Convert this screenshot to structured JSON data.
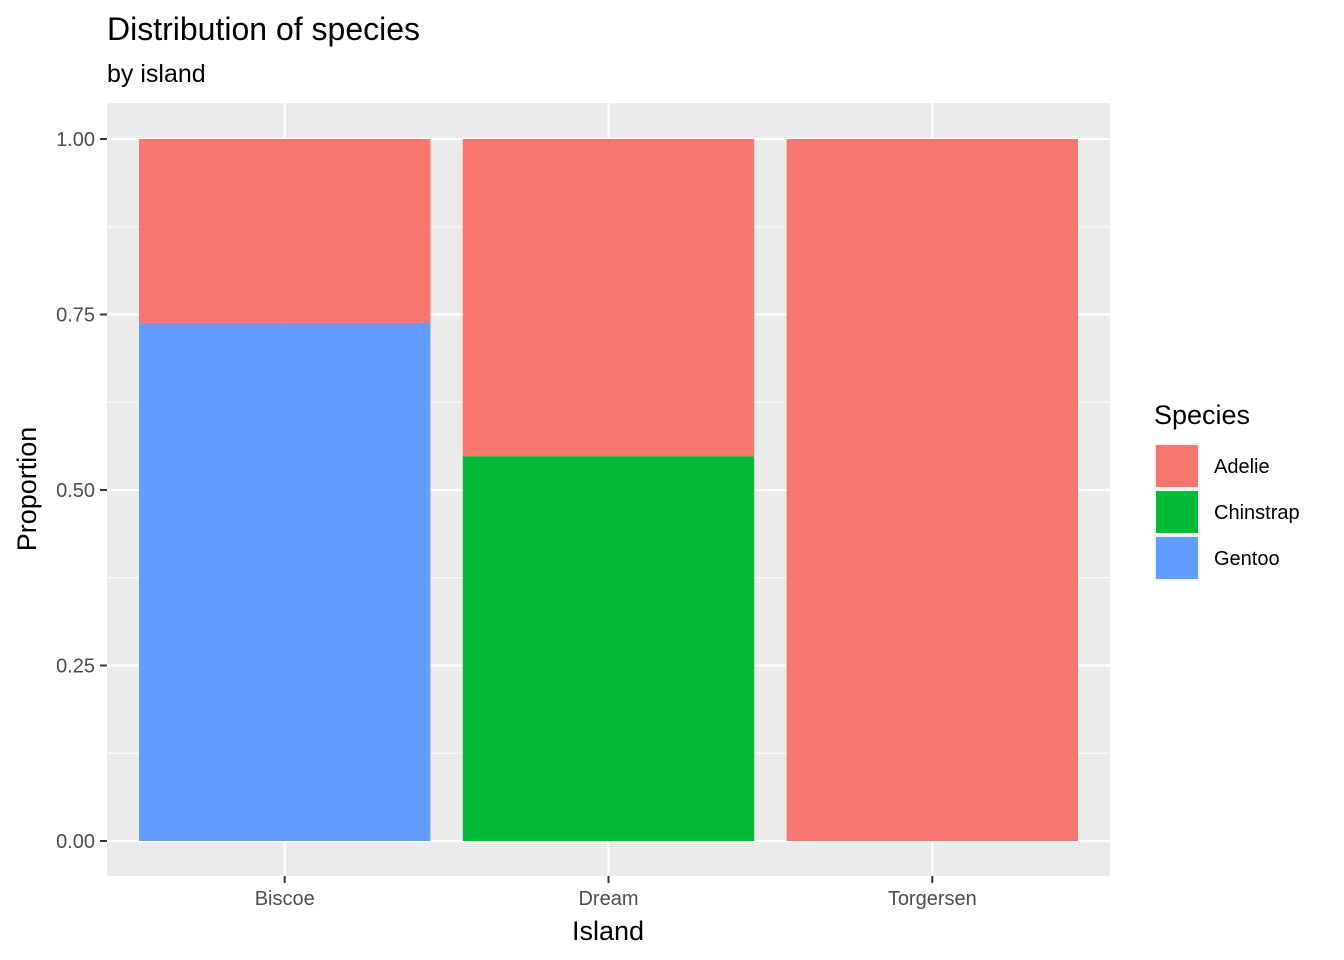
{
  "chart_data": {
    "type": "bar",
    "stacked": true,
    "title": "Distribution of species",
    "subtitle": "by island",
    "xlabel": "Island",
    "ylabel": "Proportion",
    "categories": [
      "Biscoe",
      "Dream",
      "Torgersen"
    ],
    "series": [
      {
        "name": "Adelie",
        "values": [
          0.262,
          0.452,
          1.0
        ],
        "color": "#F8766D"
      },
      {
        "name": "Chinstrap",
        "values": [
          0.0,
          0.548,
          0.0
        ],
        "color": "#00BA38"
      },
      {
        "name": "Gentoo",
        "values": [
          0.738,
          0.0,
          0.0
        ],
        "color": "#619CFF"
      }
    ],
    "stack_order": [
      "Gentoo",
      "Chinstrap",
      "Adelie"
    ],
    "ylim": [
      0,
      1
    ],
    "yticks": [
      0.0,
      0.25,
      0.5,
      0.75,
      1.0
    ],
    "ytick_labels": [
      "0.00",
      "0.25",
      "0.50",
      "0.75",
      "1.00"
    ],
    "grid": true,
    "panel_background": "#EBEBEB",
    "legend": {
      "title": "Species",
      "position": "right",
      "items": [
        "Adelie",
        "Chinstrap",
        "Gentoo"
      ]
    }
  }
}
